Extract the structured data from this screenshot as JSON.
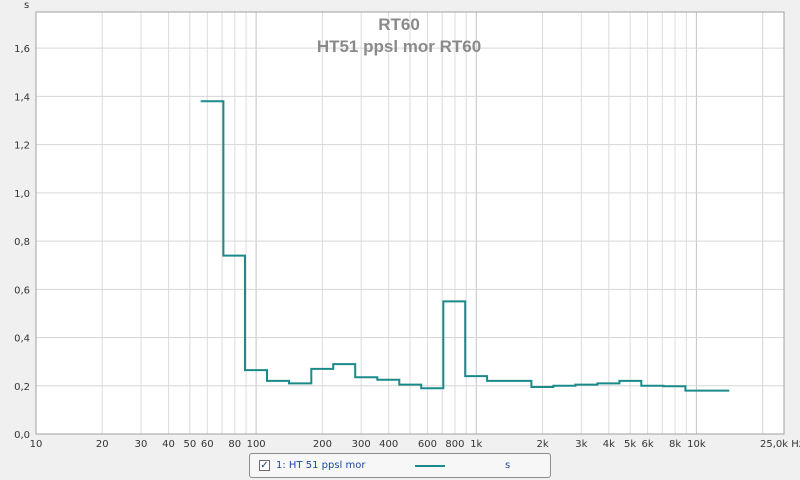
{
  "chart_data": {
    "type": "line",
    "step": true,
    "title": "RT60",
    "subtitle": "HT51 ppsl mor RT60",
    "xlabel": "",
    "ylabel": "s",
    "x_unit_label": "25,0k Hz",
    "x_scale": "log",
    "xlim": [
      10,
      25000
    ],
    "ylim": [
      0,
      1.75
    ],
    "grid": true,
    "x_ticks": [
      {
        "v": 10,
        "label": "10"
      },
      {
        "v": 20,
        "label": "20"
      },
      {
        "v": 30,
        "label": "30"
      },
      {
        "v": 40,
        "label": "40"
      },
      {
        "v": 50,
        "label": "50"
      },
      {
        "v": 60,
        "label": "60"
      },
      {
        "v": 80,
        "label": "80"
      },
      {
        "v": 100,
        "label": "100"
      },
      {
        "v": 200,
        "label": "200"
      },
      {
        "v": 300,
        "label": "300"
      },
      {
        "v": 400,
        "label": "400"
      },
      {
        "v": 600,
        "label": "600"
      },
      {
        "v": 800,
        "label": "800"
      },
      {
        "v": 1000,
        "label": "1k"
      },
      {
        "v": 2000,
        "label": "2k"
      },
      {
        "v": 3000,
        "label": "3k"
      },
      {
        "v": 4000,
        "label": "4k"
      },
      {
        "v": 5000,
        "label": "5k"
      },
      {
        "v": 6000,
        "label": "6k"
      },
      {
        "v": 8000,
        "label": "8k"
      },
      {
        "v": 10000,
        "label": "10k"
      }
    ],
    "y_ticks": [
      {
        "v": 0,
        "label": "0,0"
      },
      {
        "v": 0.2,
        "label": "0,2"
      },
      {
        "v": 0.4,
        "label": "0,4"
      },
      {
        "v": 0.6,
        "label": "0,6"
      },
      {
        "v": 0.8,
        "label": "0,8"
      },
      {
        "v": 1.0,
        "label": "1,0"
      },
      {
        "v": 1.2,
        "label": "1,2"
      },
      {
        "v": 1.4,
        "label": "1,4"
      },
      {
        "v": 1.6,
        "label": "1,6"
      }
    ],
    "series": [
      {
        "name": "1: HT 51 ppsl mor",
        "color": "#1b8a8a",
        "x": [
          56,
          71,
          89,
          112,
          141,
          178,
          224,
          282,
          355,
          447,
          562,
          708,
          891,
          1120,
          1410,
          1780,
          2240,
          2820,
          3550,
          4470,
          5620,
          7080,
          8910,
          11200
        ],
        "values": [
          1.38,
          0.74,
          0.265,
          0.22,
          0.21,
          0.27,
          0.29,
          0.235,
          0.225,
          0.205,
          0.19,
          0.55,
          0.24,
          0.22,
          0.22,
          0.195,
          0.2,
          0.205,
          0.21,
          0.22,
          0.2,
          0.198,
          0.18,
          0.18
        ]
      }
    ]
  },
  "legend": {
    "checked_glyph": "✓",
    "series_label": "1: HT 51 ppsl mor",
    "unit_label": "s"
  }
}
